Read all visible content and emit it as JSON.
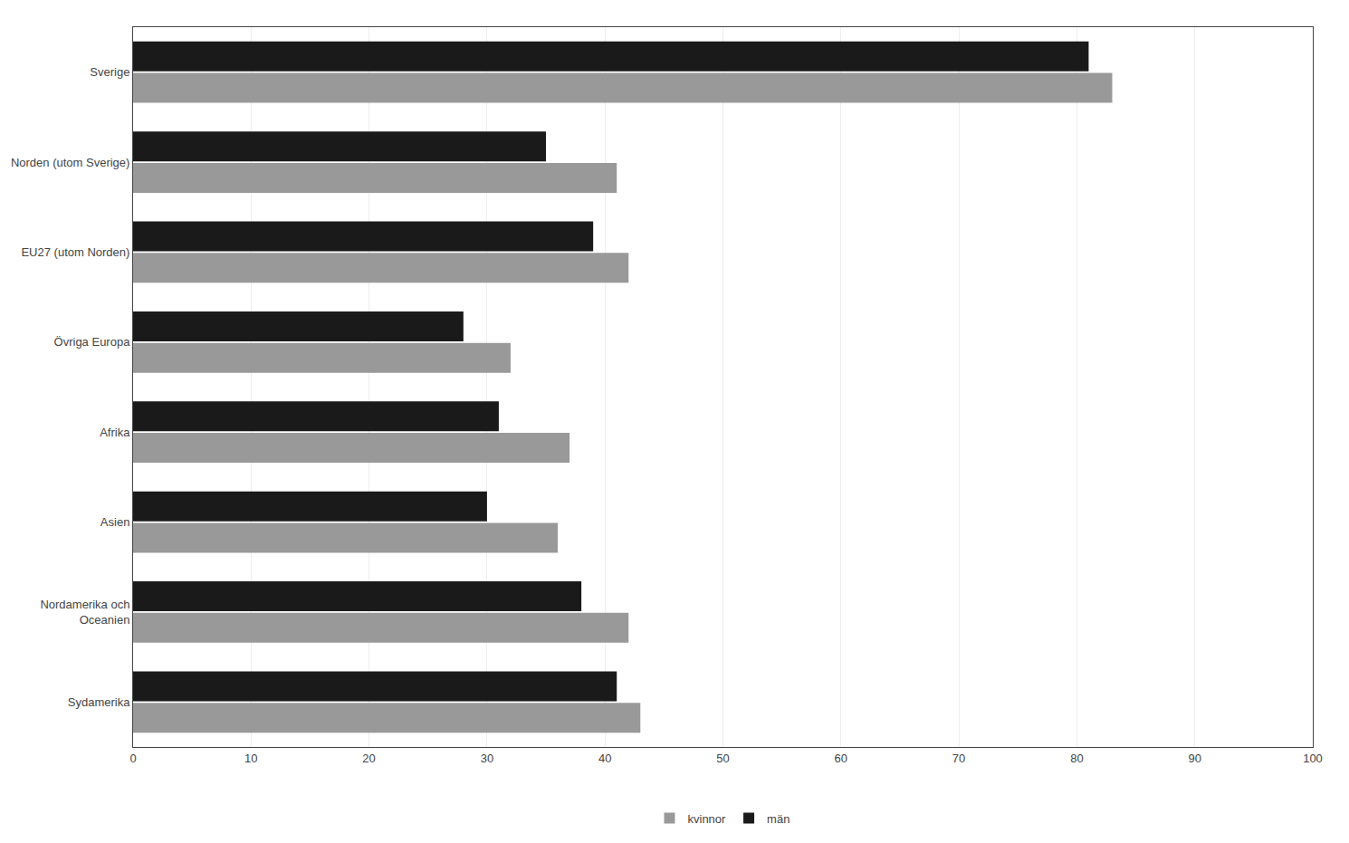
{
  "chart_data": {
    "type": "bar",
    "orientation": "horizontal",
    "categories": [
      "Sydamerika",
      "Nordamerika och\nOceanien",
      "Asien",
      "Afrika",
      "Övriga Europa",
      "EU27 (utom Norden)",
      "Norden (utom Sverige)",
      "Sverige"
    ],
    "series": [
      {
        "name": "kvinnor",
        "color": "#999999",
        "values": [
          43,
          42,
          36,
          37,
          32,
          42,
          41,
          83
        ]
      },
      {
        "name": "män",
        "color": "#1a1a1a",
        "values": [
          41,
          38,
          30,
          31,
          28,
          39,
          35,
          81
        ]
      }
    ],
    "xlim": [
      0,
      100
    ],
    "xticks": [
      0,
      10,
      20,
      30,
      40,
      50,
      60,
      70,
      80,
      90,
      100
    ],
    "grid": true,
    "legend": "bottom"
  }
}
